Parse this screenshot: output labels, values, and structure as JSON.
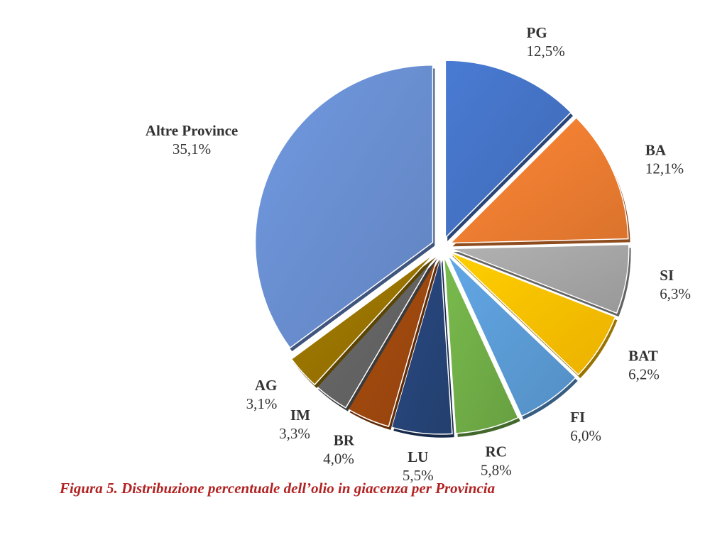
{
  "caption": "Figura 5. Distribuzione percentuale dell’olio in giacenza per Provincia",
  "chart_data": {
    "type": "pie",
    "start_angle_deg": 0,
    "direction": "clockwise",
    "exploded": true,
    "data_label_decimal_separator": ",",
    "slices": [
      {
        "label": "PG",
        "value": 12.5,
        "display": "12,5%",
        "color": "#4472C4"
      },
      {
        "label": "BA",
        "value": 12.1,
        "display": "12,1%",
        "color": "#ED7D31"
      },
      {
        "label": "SI",
        "value": 6.3,
        "display": "6,3%",
        "color": "#A5A5A5"
      },
      {
        "label": "BAT",
        "value": 6.2,
        "display": "6,2%",
        "color": "#FFC000"
      },
      {
        "label": "FI",
        "value": 6.0,
        "display": "6,0%",
        "color": "#5B9BD5"
      },
      {
        "label": "RC",
        "value": 5.8,
        "display": "5,8%",
        "color": "#70AD47"
      },
      {
        "label": "LU",
        "value": 5.5,
        "display": "5,5%",
        "color": "#264478"
      },
      {
        "label": "BR",
        "value": 4.0,
        "display": "4,0%",
        "color": "#9E480E"
      },
      {
        "label": "IM",
        "value": 3.3,
        "display": "3,3%",
        "color": "#636363"
      },
      {
        "label": "AG",
        "value": 3.1,
        "display": "3,1%",
        "color": "#997300"
      },
      {
        "label": "Altre Province",
        "value": 35.1,
        "display": "35,1%",
        "color": "#698ED0"
      }
    ]
  }
}
